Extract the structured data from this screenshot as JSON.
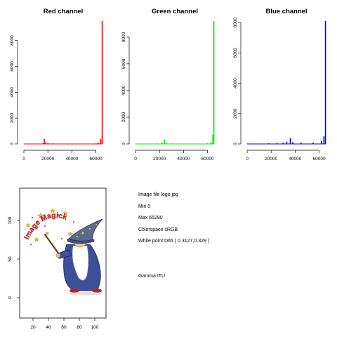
{
  "chart_data": [
    {
      "type": "histogram",
      "title": "Red channel",
      "color": "#ff0000",
      "xlim": [
        0,
        65535
      ],
      "ylim": [
        0,
        9500
      ],
      "x_ticks": [
        "0",
        "20000",
        "40000",
        "60000"
      ],
      "y_ticks": [
        "0",
        "2000",
        "4000",
        "6000",
        "8000"
      ],
      "ylabel": "",
      "bins": [
        {
          "x": 0,
          "y": 15
        },
        {
          "x": 10000,
          "y": 15
        },
        {
          "x": 16000,
          "y": 60
        },
        {
          "x": 17000,
          "y": 380
        },
        {
          "x": 18000,
          "y": 120
        },
        {
          "x": 20000,
          "y": 60
        },
        {
          "x": 24000,
          "y": 40
        },
        {
          "x": 30000,
          "y": 25
        },
        {
          "x": 40000,
          "y": 20
        },
        {
          "x": 50000,
          "y": 25
        },
        {
          "x": 60000,
          "y": 40
        },
        {
          "x": 62000,
          "y": 100
        },
        {
          "x": 64000,
          "y": 400
        },
        {
          "x": 65280,
          "y": 9500
        }
      ]
    },
    {
      "type": "histogram",
      "title": "Green channel",
      "color": "#00ee00",
      "xlim": [
        0,
        65535
      ],
      "ylim": [
        0,
        9200
      ],
      "x_ticks": [
        "0",
        "20000",
        "40000",
        "60000"
      ],
      "y_ticks": [
        "0",
        "2000",
        "4000",
        "6000",
        "8000"
      ],
      "ylabel": "",
      "bins": [
        {
          "x": 0,
          "y": 15
        },
        {
          "x": 18000,
          "y": 40
        },
        {
          "x": 22000,
          "y": 120
        },
        {
          "x": 24000,
          "y": 350
        },
        {
          "x": 26000,
          "y": 80
        },
        {
          "x": 30000,
          "y": 40
        },
        {
          "x": 40000,
          "y": 25
        },
        {
          "x": 50000,
          "y": 30
        },
        {
          "x": 60000,
          "y": 50
        },
        {
          "x": 63000,
          "y": 150
        },
        {
          "x": 64500,
          "y": 700
        },
        {
          "x": 65280,
          "y": 9200
        }
      ]
    },
    {
      "type": "histogram",
      "title": "Blue channel",
      "color": "#0000ff",
      "xlim": [
        0,
        65535
      ],
      "ylim": [
        0,
        8100
      ],
      "x_ticks": [
        "0",
        "20000",
        "40000",
        "60000"
      ],
      "y_ticks": [
        "0",
        "2000",
        "4000",
        "6000",
        "8000"
      ],
      "ylabel": "",
      "bins": [
        {
          "x": 0,
          "y": 15
        },
        {
          "x": 12000,
          "y": 25
        },
        {
          "x": 18000,
          "y": 40
        },
        {
          "x": 25000,
          "y": 60
        },
        {
          "x": 30000,
          "y": 80
        },
        {
          "x": 33000,
          "y": 150
        },
        {
          "x": 36000,
          "y": 380
        },
        {
          "x": 38000,
          "y": 120
        },
        {
          "x": 45000,
          "y": 80
        },
        {
          "x": 55000,
          "y": 90
        },
        {
          "x": 62000,
          "y": 200
        },
        {
          "x": 64000,
          "y": 500
        },
        {
          "x": 65280,
          "y": 8100
        }
      ]
    }
  ],
  "image_panel": {
    "x_ticks": [
      "20",
      "40",
      "60",
      "80",
      "100"
    ],
    "y_ticks": [
      "0",
      "50",
      "100"
    ],
    "logo_text": "Image Magick"
  },
  "info": {
    "file": "Image file logo.jpg",
    "min": "Min 0",
    "max": "Max 65280",
    "colorspace": "Colorspace sRGB",
    "white_point": "White point D65 ( 0.3127,0.329 )",
    "gamma": "Gamma ITU"
  }
}
